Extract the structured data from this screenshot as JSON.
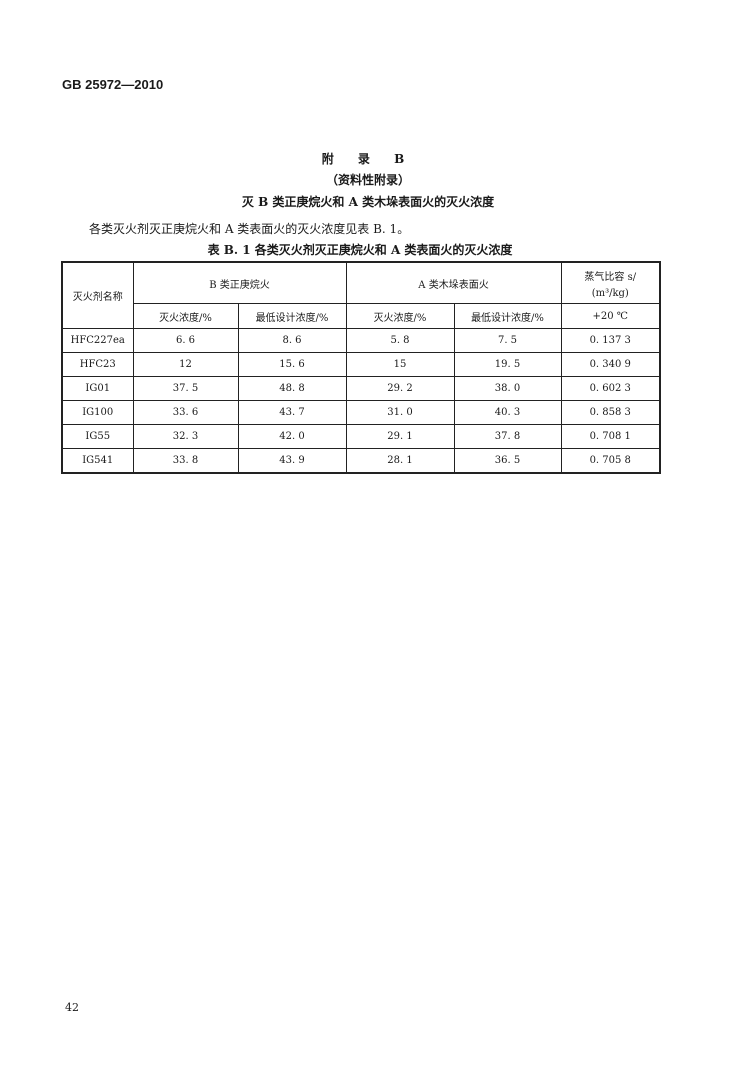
{
  "header": {
    "standard": "GB 25972—2010"
  },
  "appendix": {
    "title": "附 录 B",
    "subtitle": "（资料性附录）",
    "heading": "灭 B 类正庚烷火和 A 类木垛表面火的灭火浓度"
  },
  "intro": "各类灭火剂灭正庚烷火和 A 类表面火的灭火浓度见表 B. 1。",
  "table": {
    "caption": "表 B. 1   各类灭火剂灭正庚烷火和 A 类表面火的灭火浓度",
    "col_agent": "灭火剂名称",
    "group_b": "B 类正庚烷火",
    "group_a": "A 类木垛表面火",
    "vapor_line1": "蒸气比容 s/",
    "vapor_line2": "(m³/kg)",
    "sub": [
      "灭火浓度/%",
      "最低设计浓度/%",
      "灭火浓度/%",
      "最低设计浓度/%",
      "+20 ℃"
    ],
    "rows": [
      [
        "HFC227ea",
        "6. 6",
        "8. 6",
        "5. 8",
        "7. 5",
        "0. 137 3"
      ],
      [
        "HFC23",
        "12",
        "15. 6",
        "15",
        "19. 5",
        "0. 340 9"
      ],
      [
        "IG01",
        "37. 5",
        "48. 8",
        "29. 2",
        "38. 0",
        "0. 602 3"
      ],
      [
        "IG100",
        "33. 6",
        "43. 7",
        "31. 0",
        "40. 3",
        "0. 858 3"
      ],
      [
        "IG55",
        "32. 3",
        "42. 0",
        "29. 1",
        "37. 8",
        "0. 708 1"
      ],
      [
        "IG541",
        "33. 8",
        "43. 9",
        "28. 1",
        "36. 5",
        "0. 705 8"
      ]
    ]
  },
  "footer": {
    "page_number": "42"
  }
}
